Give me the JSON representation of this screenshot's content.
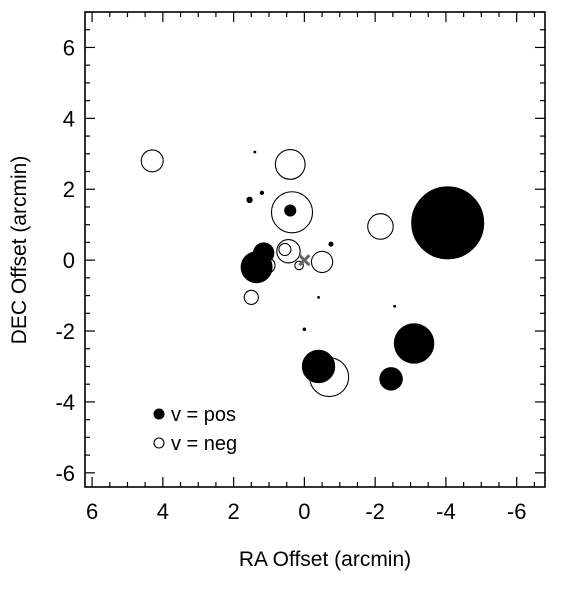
{
  "chart_data": {
    "type": "scatter",
    "xlabel": "RA Offset (arcmin)",
    "ylabel": "DEC Offset (arcmin)",
    "xlim": [
      6.2,
      -6.8
    ],
    "ylim": [
      -6.4,
      7.0
    ],
    "x_ticks": [
      6,
      4,
      2,
      0,
      -2,
      -4,
      -6
    ],
    "y_ticks": [
      6,
      4,
      2,
      0,
      -2,
      -4,
      -6
    ],
    "x_tick_labels": [
      "6",
      "4",
      "2",
      "0",
      "-2",
      "-4",
      "-6"
    ],
    "y_tick_labels": [
      "6",
      "4",
      "2",
      "0",
      "-2",
      "-4",
      "-6"
    ],
    "minor_step": 0.5,
    "grid": false,
    "legend_position": "bottom-left",
    "center_marker": {
      "ra": 0.0,
      "dec": 0.0,
      "symbol": "x",
      "color": "#666666"
    },
    "marker_size_scale_note": "r values are relative marker radii as displayed",
    "series": [
      {
        "name": "v = pos",
        "filled": true,
        "color": "#000000",
        "points": [
          {
            "ra": -4.05,
            "dec": 1.05,
            "r": 1.02
          },
          {
            "ra": -3.1,
            "dec": -2.35,
            "r": 0.56
          },
          {
            "ra": -2.45,
            "dec": -3.35,
            "r": 0.32
          },
          {
            "ra": -0.4,
            "dec": -3.0,
            "r": 0.46
          },
          {
            "ra": 1.35,
            "dec": -0.2,
            "r": 0.44
          },
          {
            "ra": 1.15,
            "dec": 0.2,
            "r": 0.29
          },
          {
            "ra": 0.4,
            "dec": 1.4,
            "r": 0.16
          },
          {
            "ra": 1.55,
            "dec": 1.7,
            "r": 0.08
          },
          {
            "ra": 1.2,
            "dec": 1.9,
            "r": 0.05
          },
          {
            "ra": 1.4,
            "dec": 3.05,
            "r": 0.025
          },
          {
            "ra": -0.75,
            "dec": 0.45,
            "r": 0.06
          },
          {
            "ra": 0.0,
            "dec": -1.95,
            "r": 0.04
          },
          {
            "ra": -0.4,
            "dec": -1.05,
            "r": 0.02
          },
          {
            "ra": -2.55,
            "dec": -1.3,
            "r": 0.025
          }
        ]
      },
      {
        "name": "v = neg",
        "filled": false,
        "color": "#000000",
        "points": [
          {
            "ra": 4.3,
            "dec": 2.8,
            "r": 0.31
          },
          {
            "ra": 0.4,
            "dec": 2.7,
            "r": 0.42
          },
          {
            "ra": 0.35,
            "dec": 1.35,
            "r": 0.58
          },
          {
            "ra": -2.15,
            "dec": 0.95,
            "r": 0.36
          },
          {
            "ra": 0.45,
            "dec": 0.25,
            "r": 0.33
          },
          {
            "ra": 0.55,
            "dec": 0.3,
            "r": 0.17
          },
          {
            "ra": -0.5,
            "dec": -0.05,
            "r": 0.3
          },
          {
            "ra": 0.15,
            "dec": -0.15,
            "r": 0.12
          },
          {
            "ra": 1.05,
            "dec": -0.15,
            "r": 0.22
          },
          {
            "ra": 1.5,
            "dec": -1.05,
            "r": 0.2
          },
          {
            "ra": -0.7,
            "dec": -3.3,
            "r": 0.55
          }
        ]
      }
    ],
    "legend": [
      {
        "symbol": "filled",
        "label": "v = pos"
      },
      {
        "symbol": "open",
        "label": "v = neg"
      }
    ]
  }
}
